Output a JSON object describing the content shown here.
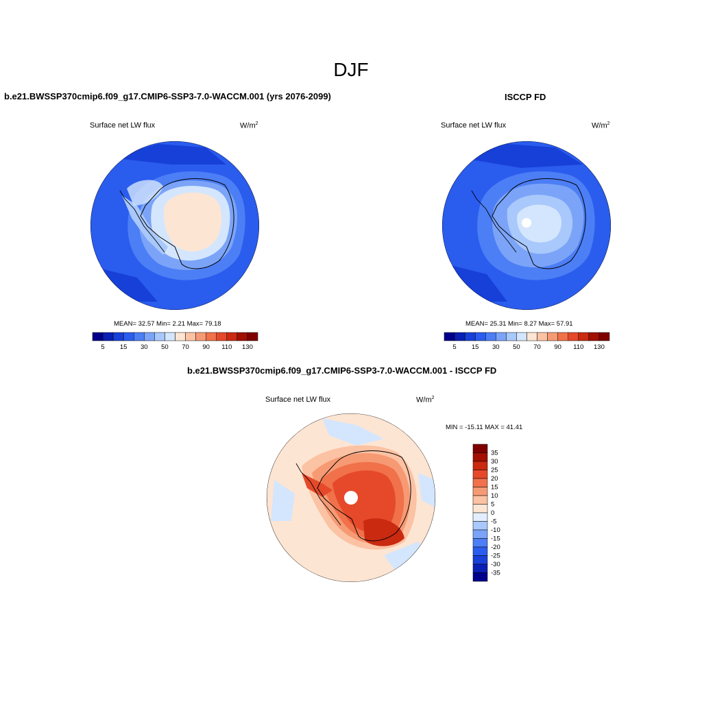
{
  "page_title": "DJF",
  "panels": [
    {
      "title": "b.e21.BWSSP370cmip6.f09_g17.CMIP6-SSP3-7.0-WACCM.001 (yrs 2076-2099)",
      "variable": "Surface net LW flux",
      "units": "W/m",
      "units_sup": "2",
      "stats": "MEAN=  32.57  Min=   2.21  Max=  79.18"
    },
    {
      "title": "ISCCP FD",
      "variable": "Surface net LW flux",
      "units": "W/m",
      "units_sup": "2",
      "stats": "MEAN=  25.31  Min=   8.27  Max=  57.91"
    },
    {
      "title": "b.e21.BWSSP370cmip6.f09_g17.CMIP6-SSP3-7.0-WACCM.001 - ISCCP FD",
      "variable": "Surface net LW flux",
      "units": "W/m",
      "units_sup": "2",
      "stats": "MIN = -15.11 MAX =  41.41"
    }
  ],
  "colorbars": {
    "abs_colors": [
      "#00008b",
      "#0a1fb4",
      "#1740d8",
      "#2a5cee",
      "#4c7ef5",
      "#7ba4f8",
      "#a9c8fb",
      "#d4e6fd",
      "#fde5d3",
      "#fbc2a3",
      "#f69a74",
      "#f0714a",
      "#e5492a",
      "#c92a10",
      "#a30f02",
      "#800000"
    ],
    "abs_ticks": [
      "5",
      "15",
      "30",
      "50",
      "70",
      "90",
      "110",
      "130"
    ],
    "diff_colors": [
      "#00008b",
      "#0a1fb4",
      "#1740d8",
      "#2a5cee",
      "#4c7ef5",
      "#7ba4f8",
      "#a9c8fb",
      "#e2eefd",
      "#fde5d3",
      "#fbc2a3",
      "#f69a74",
      "#f0714a",
      "#e5492a",
      "#c92a10",
      "#a30f02",
      "#800000"
    ],
    "diff_ticks": [
      "35",
      "30",
      "25",
      "20",
      "15",
      "10",
      "5",
      "0",
      "-5",
      "-10",
      "-15",
      "-20",
      "-25",
      "-30",
      "-35"
    ]
  }
}
